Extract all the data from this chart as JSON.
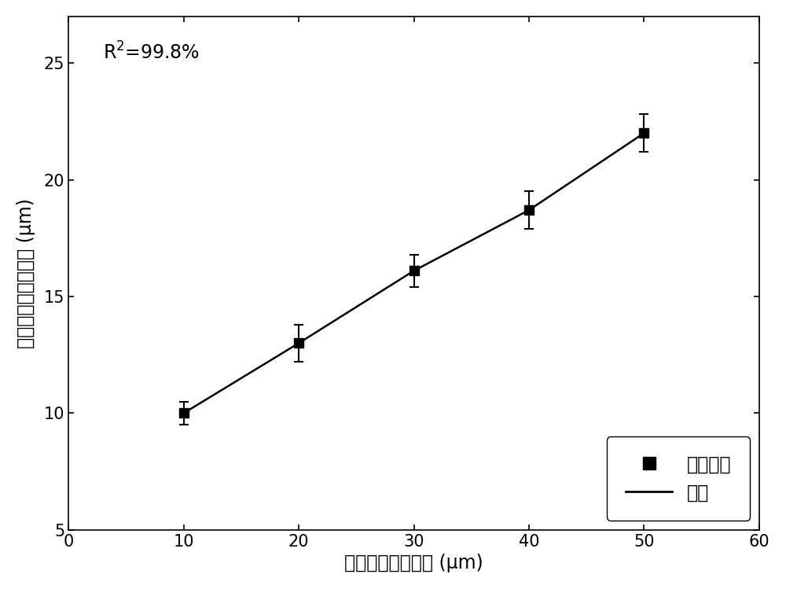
{
  "x": [
    10,
    20,
    30,
    40,
    50
  ],
  "y": [
    10.0,
    13.0,
    16.1,
    18.7,
    22.0
  ],
  "yerr": [
    0.5,
    0.8,
    0.7,
    0.8,
    0.8
  ],
  "xlim": [
    0,
    60
  ],
  "ylim": [
    5,
    27
  ],
  "xticks": [
    0,
    10,
    20,
    30,
    40,
    50,
    60
  ],
  "yticks": [
    5,
    10,
    15,
    20,
    25
  ],
  "xlabel": "原始粉末平均粒径 (μm)",
  "ylabel": "烧结体平均晶粒尺寸 (μm)",
  "annotation": "R$^2$=99.8%",
  "legend_data_label": "测试数据",
  "legend_fit_label": "拟合",
  "line_color": "#000000",
  "marker_color": "#000000",
  "background_color": "#ffffff",
  "label_fontsize": 17,
  "tick_fontsize": 15,
  "legend_fontsize": 17,
  "annotation_fontsize": 17
}
